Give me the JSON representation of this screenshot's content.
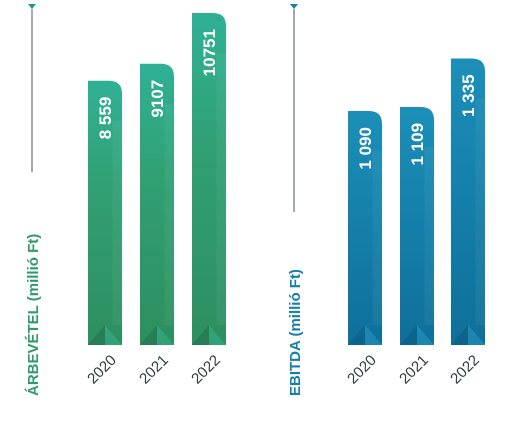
{
  "colors": {
    "revenue": "#2f9a6f",
    "revenue_light": "#30b494",
    "ebitda": "#1380aa",
    "ebitda_light": "#22a3c4",
    "guide": "#4a5a64"
  },
  "chart_data": [
    {
      "type": "bar",
      "ylabel": "ÁRBEVÉTEL (millió Ft)",
      "categories": [
        "2020",
        "2021",
        "2022"
      ],
      "values": [
        8559,
        9107,
        10751
      ],
      "value_labels": [
        "8 559",
        "9107",
        "10751"
      ],
      "ylim": [
        0,
        11400
      ],
      "grid": false,
      "legend": "none"
    },
    {
      "type": "bar",
      "ylabel": "EBITDA (millió Ft)",
      "categories": [
        "2020",
        "2021",
        "2022"
      ],
      "values": [
        1090,
        1109,
        1335
      ],
      "value_labels": [
        "1 090",
        "1 109",
        "1 335"
      ],
      "ylim": [
        0,
        1640
      ],
      "grid": false,
      "legend": "none"
    }
  ]
}
